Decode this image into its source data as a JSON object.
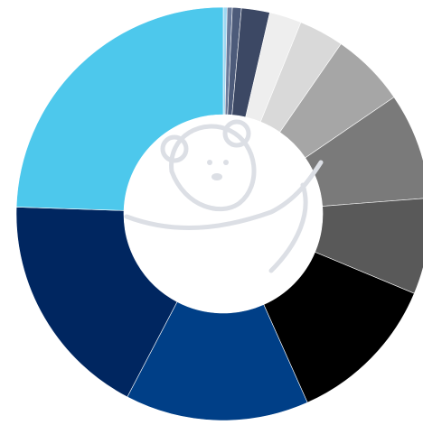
{
  "chart_data": {
    "type": "pie",
    "donut": true,
    "categories": [
      null,
      null,
      null,
      null,
      null,
      null,
      null,
      null,
      null,
      null,
      null,
      null,
      null
    ],
    "values": [
      0.3,
      0.4,
      0.7,
      2.2,
      2.5,
      3.5,
      5.8,
      8.3,
      7.5,
      12,
      14.3,
      17.8,
      24.4
    ],
    "colors": [
      "#9fd8f2",
      "#6b7b9b",
      "#4d5b7a",
      "#3c4864",
      "#eeeeee",
      "#d9d9d9",
      "#a6a6a6",
      "#7a7a7a",
      "#595959",
      "#000000",
      "#003f87",
      "#002660",
      "#4dc8ec"
    ]
  }
}
